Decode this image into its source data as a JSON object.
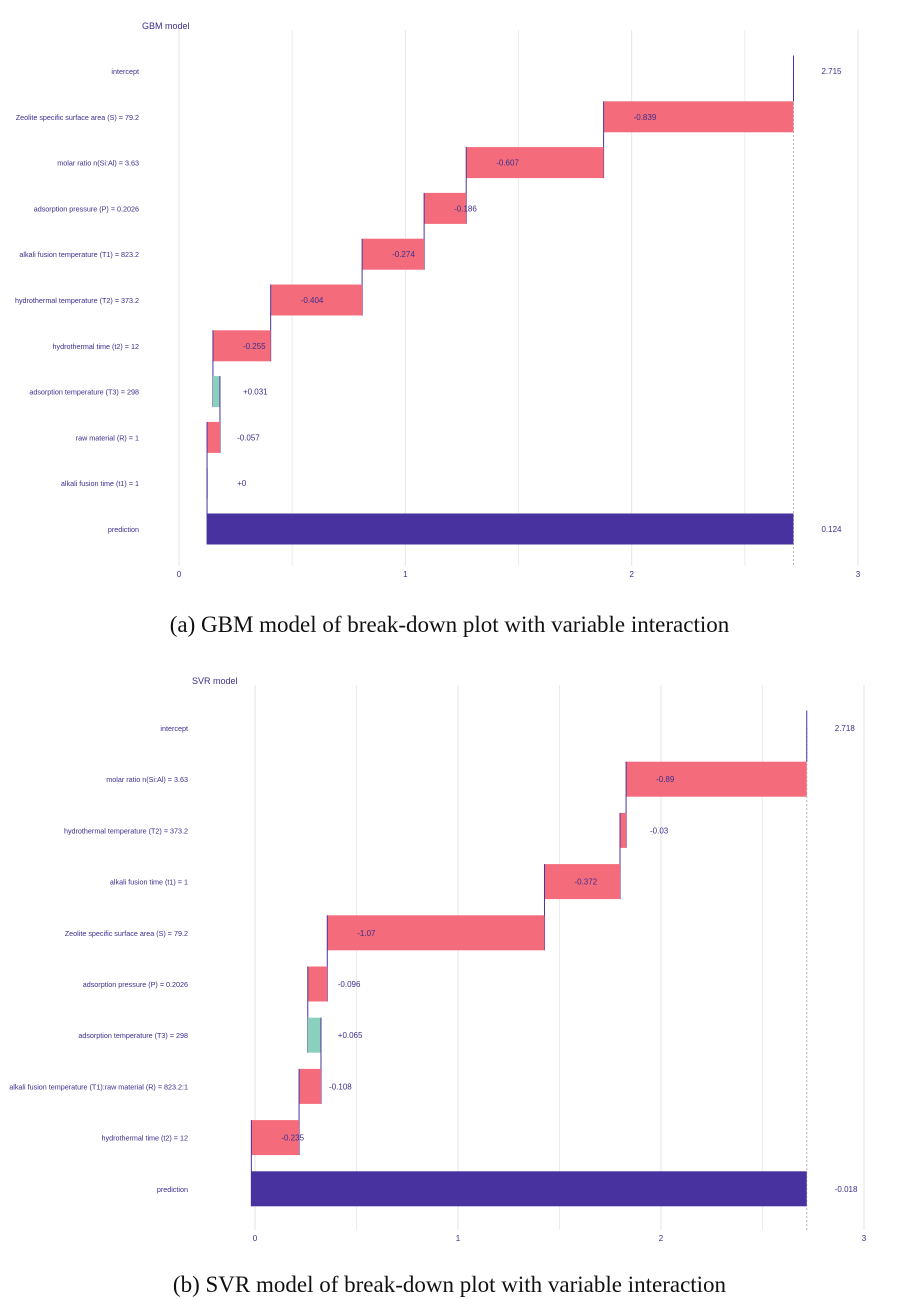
{
  "chart_data": [
    {
      "type": "bar",
      "title": "GBM model",
      "caption": "(a) GBM model of break-down plot with variable interaction",
      "xlim": [
        0,
        3
      ],
      "xticks": [
        "0",
        "1",
        "2",
        "3"
      ],
      "grid": true,
      "baseline": 2.715,
      "colors": {
        "negative": "#f46c7c",
        "positive": "#8bcfbd",
        "prediction": "#4832a0",
        "text": "#3b2e8c",
        "connector": "#4832a0"
      },
      "rows": [
        {
          "label": "intercept",
          "kind": "intercept",
          "value": 2.715,
          "text": "2.715"
        },
        {
          "label": "Zeolite specific surface area (S) = 79.2",
          "kind": "step",
          "start": 2.715,
          "end": 1.876,
          "text": "-0.839"
        },
        {
          "label": "molar ratio n(Si:Al) = 3.63",
          "kind": "step",
          "start": 1.876,
          "end": 1.269,
          "text": "-0.607"
        },
        {
          "label": "adsorption pressure (P) = 0.2026",
          "kind": "step",
          "start": 1.269,
          "end": 1.083,
          "text": "-0.186"
        },
        {
          "label": "alkali fusion temperature (T1) = 823.2",
          "kind": "step",
          "start": 1.083,
          "end": 0.809,
          "text": "-0.274"
        },
        {
          "label": "hydrothermal temperature (T2) = 373.2",
          "kind": "step",
          "start": 0.809,
          "end": 0.405,
          "text": "-0.404"
        },
        {
          "label": "hydrothermal time (t2) = 12",
          "kind": "step",
          "start": 0.405,
          "end": 0.15,
          "text": "-0.255"
        },
        {
          "label": "adsorption temperature (T3) = 298",
          "kind": "step",
          "start": 0.15,
          "end": 0.181,
          "text": "+0.031"
        },
        {
          "label": "raw material (R) = 1",
          "kind": "step",
          "start": 0.181,
          "end": 0.124,
          "text": "-0.057"
        },
        {
          "label": "alkali fusion time (t1) = 1",
          "kind": "step",
          "start": 0.124,
          "end": 0.124,
          "text": "+0"
        },
        {
          "label": "prediction",
          "kind": "prediction",
          "start": 0.124,
          "end": 2.715,
          "text": "0.124"
        }
      ]
    },
    {
      "type": "bar",
      "title": "SVR model",
      "caption": "(b) SVR model of break-down plot with variable interaction",
      "xlim": [
        0,
        3
      ],
      "xticks": [
        "0",
        "1",
        "2",
        "3"
      ],
      "grid": true,
      "baseline": 2.718,
      "colors": {
        "negative": "#f46c7c",
        "positive": "#8bcfbd",
        "prediction": "#4832a0",
        "text": "#3b2e8c",
        "connector": "#4832a0"
      },
      "rows": [
        {
          "label": "intercept",
          "kind": "intercept",
          "value": 2.718,
          "text": "2.718"
        },
        {
          "label": "molar ratio n(Si:Al) = 3.63",
          "kind": "step",
          "start": 2.718,
          "end": 1.828,
          "text": "-0.89"
        },
        {
          "label": "hydrothermal temperature (T2) = 373.2",
          "kind": "step",
          "start": 1.828,
          "end": 1.798,
          "text": "-0.03"
        },
        {
          "label": "alkali fusion time (t1) = 1",
          "kind": "step",
          "start": 1.798,
          "end": 1.426,
          "text": "-0.372"
        },
        {
          "label": "Zeolite specific surface area (S) = 79.2",
          "kind": "step",
          "start": 1.426,
          "end": 0.356,
          "text": "-1.07"
        },
        {
          "label": "adsorption pressure (P) = 0.2026",
          "kind": "step",
          "start": 0.356,
          "end": 0.26,
          "text": "-0.096"
        },
        {
          "label": "adsorption temperature (T3) = 298",
          "kind": "step",
          "start": 0.26,
          "end": 0.325,
          "text": "+0.065"
        },
        {
          "label": "alkali fusion temperature (T1):raw material (R) = 823.2:1",
          "kind": "step",
          "start": 0.325,
          "end": 0.217,
          "text": "-0.108"
        },
        {
          "label": "hydrothermal time (t2) = 12",
          "kind": "step",
          "start": 0.217,
          "end": -0.018,
          "text": "-0.235"
        },
        {
          "label": "prediction",
          "kind": "prediction",
          "start": -0.018,
          "end": 2.718,
          "text": "-0.018"
        }
      ]
    }
  ]
}
